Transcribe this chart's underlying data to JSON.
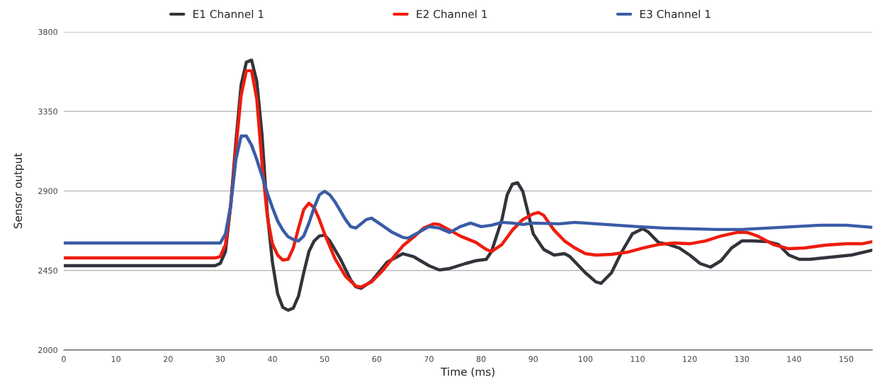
{
  "chart_data": {
    "type": "line",
    "xlabel": "Time (ms)",
    "ylabel": "Sensor output",
    "xlim": [
      0,
      155
    ],
    "xticks": [
      0,
      10,
      20,
      30,
      40,
      50,
      60,
      70,
      80,
      90,
      100,
      110,
      120,
      130,
      140,
      150
    ],
    "ylim": [
      2000,
      3800
    ],
    "yticks": [
      2000,
      2450,
      2900,
      3350,
      3800
    ],
    "grid": "y",
    "legend": "top",
    "marker": "none",
    "line_style": "solid",
    "series": [
      {
        "name": "E1 Channel 1",
        "color": "#33333b",
        "x": [
          0,
          29,
          30,
          31,
          32,
          33,
          34,
          35,
          36,
          37,
          38,
          39,
          40,
          41,
          42,
          43,
          44,
          45,
          46,
          47,
          48,
          49,
          50,
          51,
          53,
          55,
          56,
          57,
          59,
          62,
          65,
          67,
          70,
          72,
          74,
          77,
          79,
          81,
          82,
          84,
          85,
          86,
          87,
          88,
          89,
          90,
          92,
          94,
          96,
          97,
          100,
          102,
          103,
          105,
          107,
          109,
          111,
          112,
          114,
          116,
          118,
          120,
          122,
          124,
          126,
          128,
          130,
          132,
          135,
          137,
          139,
          141,
          143,
          147,
          151,
          155
        ],
        "values": [
          2477,
          2477,
          2490,
          2557,
          2818,
          3180,
          3500,
          3628,
          3640,
          3520,
          3220,
          2780,
          2497,
          2317,
          2241,
          2225,
          2237,
          2305,
          2437,
          2557,
          2617,
          2645,
          2650,
          2617,
          2517,
          2397,
          2357,
          2349,
          2389,
          2497,
          2545,
          2529,
          2477,
          2453,
          2461,
          2489,
          2505,
          2513,
          2557,
          2738,
          2878,
          2938,
          2946,
          2898,
          2778,
          2657,
          2569,
          2537,
          2545,
          2529,
          2437,
          2385,
          2377,
          2437,
          2557,
          2657,
          2686,
          2669,
          2609,
          2597,
          2577,
          2537,
          2489,
          2469,
          2505,
          2577,
          2617,
          2617,
          2613,
          2597,
          2537,
          2513,
          2513,
          2525,
          2537,
          2565
        ]
      },
      {
        "name": "E2 Channel 1",
        "color": "#ee1c0e",
        "x": [
          0,
          29,
          30,
          31,
          32,
          33,
          34,
          35,
          36,
          37,
          38,
          39,
          40,
          41,
          42,
          43,
          44,
          45,
          46,
          47,
          48,
          49,
          50,
          52,
          54,
          56,
          57,
          59,
          61,
          63,
          65,
          67,
          69,
          71,
          72,
          74,
          76,
          79,
          81,
          82,
          84,
          86,
          88,
          90,
          91,
          92,
          94,
          96,
          98,
          100,
          102,
          105,
          108,
          111,
          114,
          117,
          120,
          123,
          126,
          129,
          131,
          133,
          136,
          139,
          142,
          146,
          150,
          153,
          155
        ],
        "values": [
          2521,
          2521,
          2529,
          2597,
          2818,
          3139,
          3440,
          3580,
          3580,
          3420,
          3058,
          2760,
          2600,
          2537,
          2509,
          2513,
          2577,
          2690,
          2794,
          2830,
          2806,
          2738,
          2657,
          2517,
          2417,
          2361,
          2357,
          2385,
          2445,
          2517,
          2589,
          2637,
          2690,
          2714,
          2710,
          2678,
          2645,
          2609,
          2569,
          2557,
          2597,
          2678,
          2738,
          2770,
          2778,
          2762,
          2678,
          2617,
          2577,
          2545,
          2537,
          2541,
          2553,
          2577,
          2597,
          2605,
          2601,
          2617,
          2645,
          2665,
          2665,
          2645,
          2597,
          2573,
          2577,
          2593,
          2601,
          2601,
          2613
        ]
      },
      {
        "name": "E3 Channel 1",
        "color": "#3a5ca6",
        "x": [
          0,
          30,
          31,
          32,
          33,
          34,
          35,
          36,
          37,
          38,
          39,
          40,
          41,
          42,
          43,
          44,
          45,
          46,
          47,
          48,
          49,
          50,
          51,
          52,
          54,
          55,
          56,
          58,
          59,
          61,
          63,
          65,
          66,
          68,
          70,
          72,
          74,
          76,
          78,
          80,
          82,
          84,
          86,
          88,
          90,
          95,
          98,
          102,
          110,
          115,
          120,
          125,
          130,
          135,
          140,
          145,
          150,
          155
        ],
        "values": [
          2605,
          2605,
          2657,
          2818,
          3078,
          3211,
          3211,
          3159,
          3078,
          2986,
          2890,
          2806,
          2730,
          2678,
          2641,
          2625,
          2617,
          2645,
          2718,
          2806,
          2878,
          2898,
          2878,
          2838,
          2738,
          2698,
          2690,
          2738,
          2746,
          2706,
          2665,
          2637,
          2633,
          2665,
          2698,
          2690,
          2665,
          2698,
          2718,
          2698,
          2706,
          2722,
          2718,
          2710,
          2718,
          2714,
          2722,
          2714,
          2698,
          2690,
          2686,
          2682,
          2682,
          2690,
          2698,
          2706,
          2706,
          2694
        ]
      }
    ]
  }
}
